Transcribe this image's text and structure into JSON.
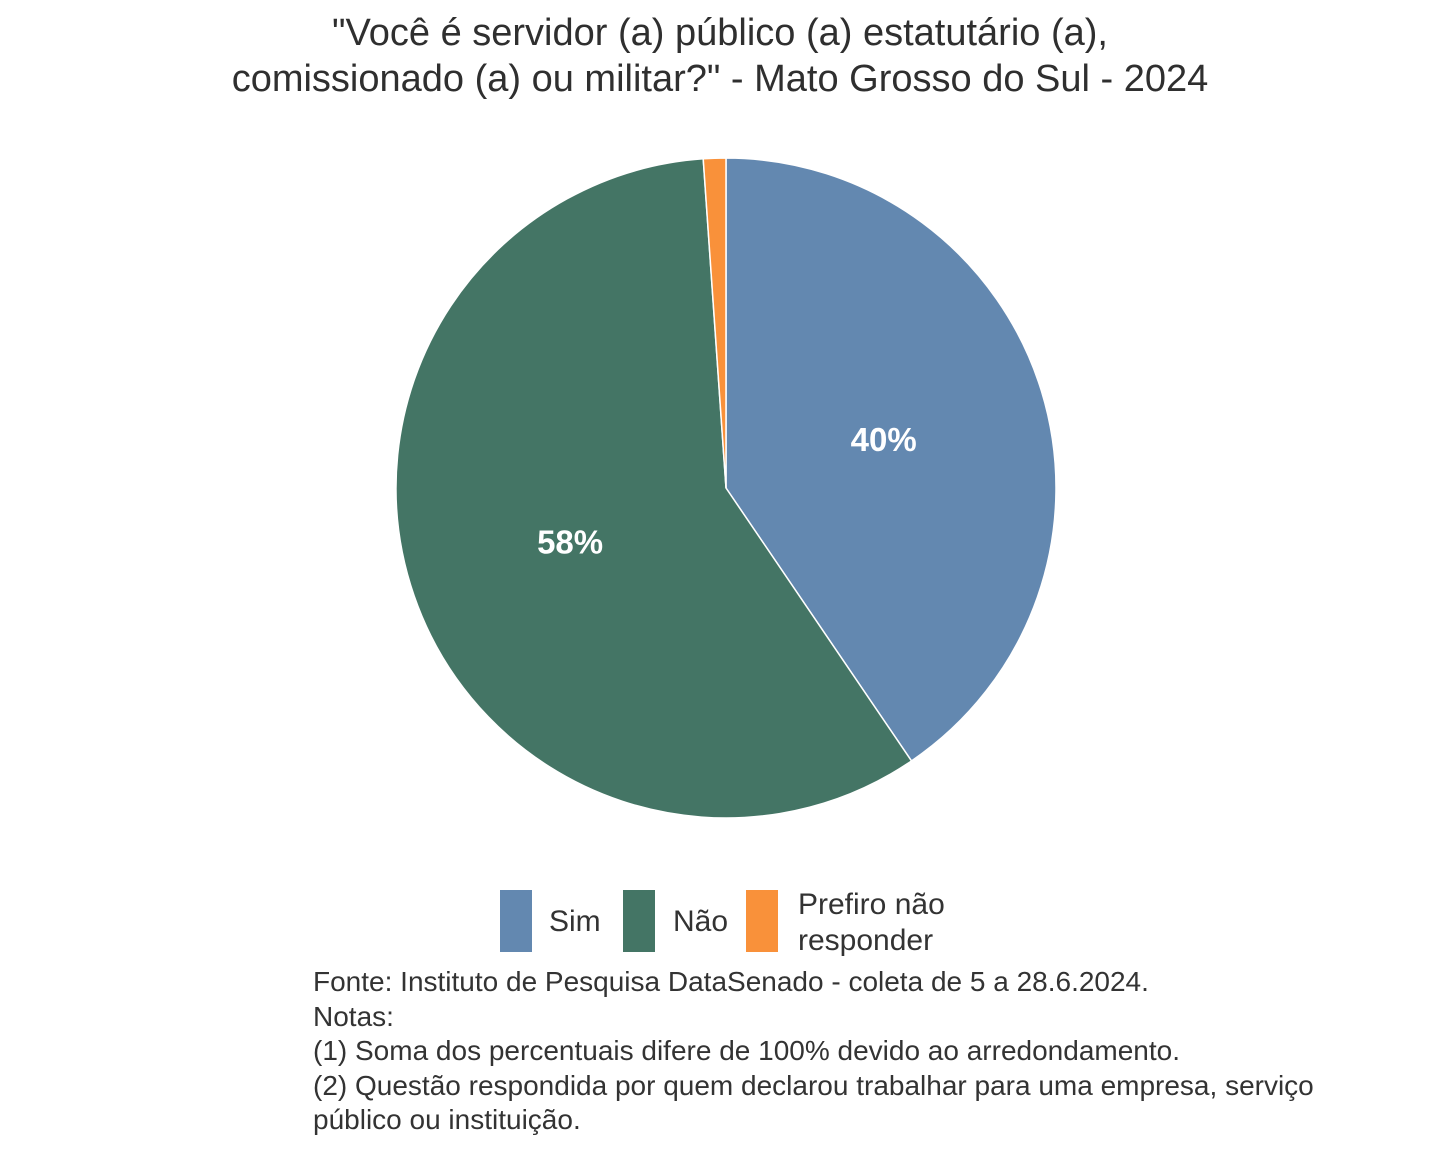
{
  "chart_data": {
    "type": "pie",
    "title_lines": [
      "\"Você é servidor (a) público (a) estatutário (a),",
      "comissionado (a) ou militar?\" - Mato Grosso do Sul - 2024"
    ],
    "slices": [
      {
        "label": "Sim",
        "value": 40.5,
        "display": "40%",
        "color": "#6388B0"
      },
      {
        "label": "Não",
        "value": 58.4,
        "display": "58%",
        "color": "#447565"
      },
      {
        "label": "Prefiro não responder",
        "value": 1.1,
        "display": "",
        "color": "#F9913A"
      }
    ],
    "start_angle_deg": 0,
    "direction": "clockwise",
    "legend": {
      "placement": "bottom",
      "items": [
        {
          "label_lines": [
            "Sim"
          ],
          "color": "#6388B0"
        },
        {
          "label_lines": [
            "Não"
          ],
          "color": "#447565"
        },
        {
          "label_lines": [
            "Prefiro não",
            "responder"
          ],
          "color": "#F9913A"
        }
      ]
    }
  },
  "caption": {
    "lines": [
      "Fonte: Instituto de Pesquisa DataSenado - coleta de 5 a 28.6.2024.",
      "Notas:",
      "(1) Soma dos percentuais difere de 100% devido ao arredondamento.",
      "(2) Questão respondida por quem declarou trabalhar para uma empresa, serviço",
      "público ou instituição."
    ]
  }
}
